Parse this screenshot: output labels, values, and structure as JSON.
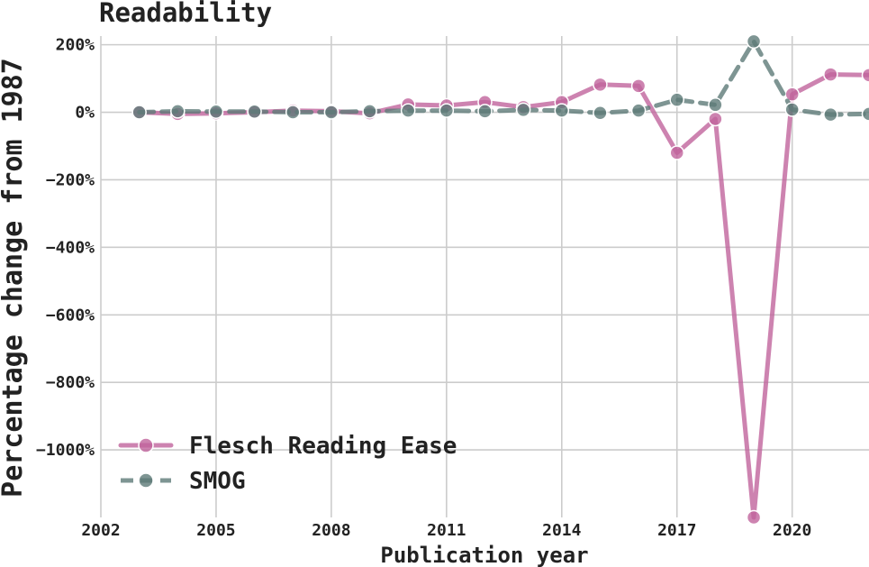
{
  "chart_data": {
    "type": "line",
    "title": "Readability",
    "xlabel": "Publication year",
    "ylabel": "Percentage change from 1987",
    "xlim": [
      2002,
      2022
    ],
    "ylim": [
      -1200,
      215
    ],
    "x_ticks": [
      {
        "value": 2002,
        "label": "2002"
      },
      {
        "value": 2005,
        "label": "2005"
      },
      {
        "value": 2008,
        "label": "2008"
      },
      {
        "value": 2011,
        "label": "2011"
      },
      {
        "value": 2014,
        "label": "2014"
      },
      {
        "value": 2017,
        "label": "2017"
      },
      {
        "value": 2020,
        "label": "2020"
      }
    ],
    "y_ticks": [
      {
        "value": 200,
        "label": "200%"
      },
      {
        "value": 0,
        "label": "0%"
      },
      {
        "value": -200,
        "label": "−200%"
      },
      {
        "value": -400,
        "label": "−400%"
      },
      {
        "value": -600,
        "label": "−600%"
      },
      {
        "value": -800,
        "label": "−800%"
      },
      {
        "value": -1000,
        "label": "−1000%"
      }
    ],
    "grid": true,
    "legend_position": "lower-left",
    "series": [
      {
        "name": "Flesch Reading Ease",
        "color": "#c0649c",
        "dash": "solid",
        "x": [
          2003,
          2004,
          2005,
          2006,
          2007,
          2008,
          2009,
          2010,
          2011,
          2012,
          2013,
          2014,
          2015,
          2016,
          2017,
          2018,
          2019,
          2020,
          2021,
          2022
        ],
        "y": [
          0,
          -5,
          -3,
          0,
          5,
          3,
          -3,
          23,
          20,
          30,
          15,
          30,
          82,
          78,
          -120,
          -20,
          -1200,
          53,
          112,
          110
        ]
      },
      {
        "name": "SMOG",
        "color": "#5e7b78",
        "dash": "dashed",
        "x": [
          2003,
          2004,
          2005,
          2006,
          2007,
          2008,
          2009,
          2010,
          2011,
          2012,
          2013,
          2014,
          2015,
          2016,
          2017,
          2018,
          2019,
          2020,
          2021,
          2022
        ],
        "y": [
          0,
          3,
          2,
          2,
          0,
          0,
          3,
          5,
          5,
          3,
          7,
          5,
          -2,
          5,
          37,
          22,
          210,
          8,
          -7,
          -5
        ]
      }
    ]
  }
}
